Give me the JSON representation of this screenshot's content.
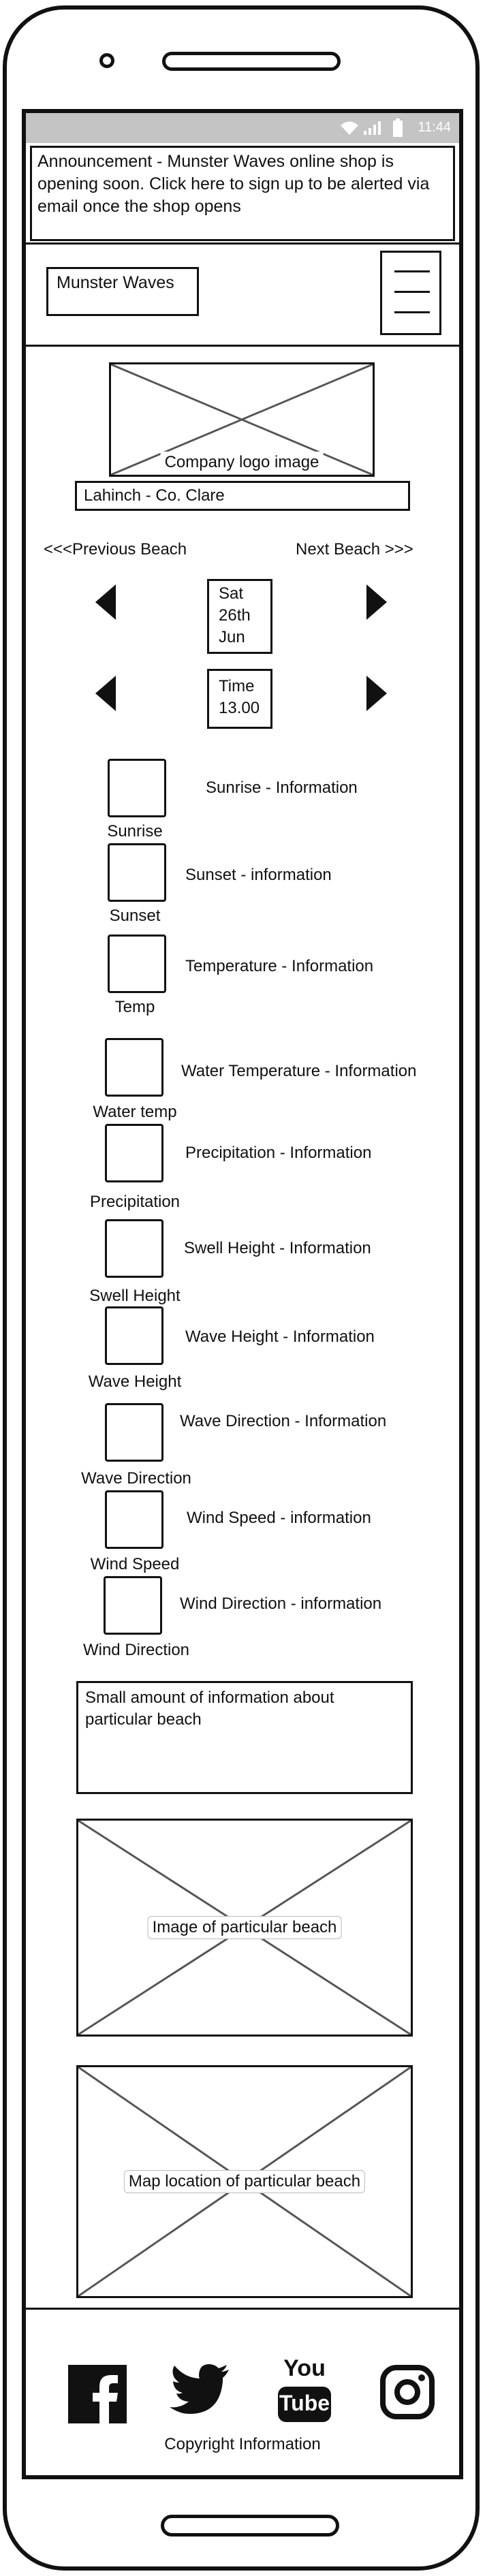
{
  "status_bar": {
    "time": "11:44",
    "icons": [
      "wifi-icon",
      "signal-icon",
      "battery-icon"
    ]
  },
  "announcement": {
    "text": "Announcement - Munster Waves online shop is opening soon. Click here to sign up to be alerted via email once the shop opens"
  },
  "header": {
    "brand": "Munster Waves",
    "menu_icon": "hamburger-menu-icon"
  },
  "logo": {
    "caption": "Company logo image"
  },
  "location": {
    "text": "Lahinch - Co. Clare"
  },
  "beach_nav": {
    "previous": "<<<Previous Beach",
    "next": "Next Beach >>>"
  },
  "date_selector": {
    "line1": "Sat",
    "line2": "26th",
    "line3": "Jun"
  },
  "time_selector": {
    "line1": "Time",
    "line2": "13.00"
  },
  "conditions": [
    {
      "caption": "Sunrise",
      "info": "Sunrise - Information"
    },
    {
      "caption": "Sunset",
      "info": "Sunset - information"
    },
    {
      "caption": "Temp",
      "info": "Temperature - Information"
    },
    {
      "caption": "Water temp",
      "info": "Water Temperature - Information"
    },
    {
      "caption": "Precipitation",
      "info": "Precipitation - Information"
    },
    {
      "caption": "Swell Height",
      "info": "Swell Height - Information"
    },
    {
      "caption": "Wave Height",
      "info": "Wave Height - Information"
    },
    {
      "caption": "Wave Direction",
      "info": "Wave Direction - Information"
    },
    {
      "caption": "Wind Speed",
      "info": "Wind Speed - information"
    },
    {
      "caption": "Wind Direction",
      "info": "Wind Direction - information"
    }
  ],
  "beach_description": {
    "text": "Small amount of information about particular beach"
  },
  "beach_image": {
    "caption": "Image of particular beach"
  },
  "beach_map": {
    "caption": "Map location of particular beach"
  },
  "footer": {
    "social_icons": [
      "facebook-icon",
      "twitter-icon",
      "youtube-icon",
      "instagram-icon"
    ],
    "youtube_you": "You",
    "youtube_tube": "Tube",
    "copyright": "Copyright Information"
  }
}
